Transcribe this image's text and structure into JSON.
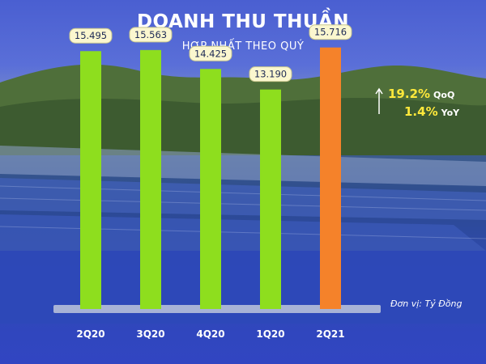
{
  "header": {
    "title": "DOANH THU THUẦN",
    "subtitle": "HỢP NHẤT THEO QUÝ"
  },
  "unit_note": "Đơn vị: Tỷ Đồng",
  "growth": {
    "qoq": {
      "value": "19.2%",
      "unit": "QoQ"
    },
    "yoy": {
      "value": "1.4%",
      "unit": "YoY"
    }
  },
  "colors": {
    "bar_default": "#8ede1e",
    "bar_highlight": "#f5822a",
    "label_bg": "#fbf7cf",
    "label_border": "#c9c78f"
  },
  "chart_data": {
    "type": "bar",
    "title": "DOANH THU THUẦN",
    "subtitle": "HỢP NHẤT THEO QUÝ",
    "categories": [
      "2Q20",
      "3Q20",
      "4Q20",
      "1Q20",
      "2Q21"
    ],
    "values": [
      15495,
      15563,
      14425,
      13190,
      15716
    ],
    "value_labels": [
      "15.495",
      "15.563",
      "14.425",
      "13.190",
      "15.716"
    ],
    "highlight_index": 4,
    "ylim": [
      0,
      17500
    ],
    "grid": false,
    "xlabel": "",
    "ylabel": ""
  }
}
